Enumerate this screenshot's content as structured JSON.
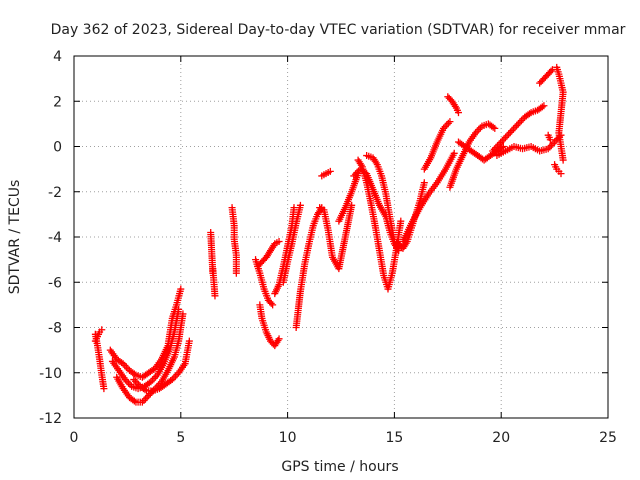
{
  "chart_data": {
    "type": "scatter",
    "title": "Day 362 of 2023, Sidereal Day-to-day VTEC variation (SDTVAR) for receiver mmar",
    "xlabel": "GPS time / hours",
    "ylabel": "SDTVAR / TECUs",
    "xlim": [
      0,
      25
    ],
    "ylim": [
      -12,
      4
    ],
    "x_ticks": [
      0,
      5,
      10,
      15,
      20,
      25
    ],
    "y_ticks": [
      -12,
      -10,
      -8,
      -6,
      -4,
      -2,
      0,
      2,
      4
    ],
    "x_tick_labels": [
      "0",
      "5",
      "10",
      "15",
      "20",
      "25"
    ],
    "y_tick_labels": [
      "-12",
      "-10",
      "-8",
      "-6",
      "-4",
      "-2",
      "0",
      "2",
      "4"
    ],
    "grid": true,
    "marker": "+",
    "color": "#ff0000",
    "series": [
      {
        "name": "t1",
        "x": [
          1.0,
          1.1,
          1.2,
          1.3,
          1.4
        ],
        "y": [
          -8.3,
          -8.8,
          -9.4,
          -10.1,
          -10.7
        ]
      },
      {
        "name": "t2",
        "x": [
          1.0,
          1.1,
          1.2,
          1.3
        ],
        "y": [
          -8.6,
          -8.4,
          -8.2,
          -8.1
        ]
      },
      {
        "name": "t3",
        "x": [
          1.7,
          2.0,
          2.3,
          2.6,
          2.9,
          3.2,
          3.5,
          3.8,
          4.1,
          4.4,
          4.6,
          4.8,
          5.0
        ],
        "y": [
          -9.0,
          -9.4,
          -9.6,
          -9.9,
          -10.1,
          -10.2,
          -10.0,
          -9.8,
          -9.4,
          -8.8,
          -7.6,
          -7.0,
          -6.3
        ]
      },
      {
        "name": "t4",
        "x": [
          1.8,
          2.1,
          2.4,
          2.7,
          3.0,
          3.3,
          3.6,
          3.9,
          4.2,
          4.5,
          4.7,
          4.9
        ],
        "y": [
          -9.5,
          -9.9,
          -10.3,
          -10.6,
          -10.7,
          -10.6,
          -10.4,
          -10.1,
          -9.6,
          -8.9,
          -8.2,
          -7.2
        ]
      },
      {
        "name": "t5",
        "x": [
          2.0,
          2.3,
          2.6,
          2.9,
          3.2,
          3.5,
          3.8,
          4.1,
          4.4,
          4.7,
          4.9,
          5.1
        ],
        "y": [
          -10.2,
          -10.7,
          -11.1,
          -11.3,
          -11.3,
          -11.0,
          -10.7,
          -10.4,
          -9.9,
          -9.3,
          -8.6,
          -7.4
        ]
      },
      {
        "name": "t6",
        "x": [
          2.8,
          3.1,
          3.4,
          3.7,
          4.0,
          4.3,
          4.6,
          4.9,
          5.2,
          5.4
        ],
        "y": [
          -10.3,
          -10.6,
          -10.8,
          -10.8,
          -10.7,
          -10.5,
          -10.3,
          -10.0,
          -9.6,
          -8.6
        ]
      },
      {
        "name": "t7",
        "x": [
          6.4,
          6.5,
          6.5,
          6.6
        ],
        "y": [
          -3.8,
          -5.6,
          -5.4,
          -6.6
        ]
      },
      {
        "name": "t8",
        "x": [
          7.4,
          7.5,
          7.5,
          7.6,
          7.6
        ],
        "y": [
          -2.7,
          -3.5,
          -4.1,
          -4.8,
          -5.6
        ]
      },
      {
        "name": "t9",
        "x": [
          8.5,
          8.7,
          8.9,
          9.1,
          9.3
        ],
        "y": [
          -5.0,
          -5.6,
          -6.3,
          -6.8,
          -7.0
        ]
      },
      {
        "name": "t10",
        "x": [
          8.6,
          8.8,
          9.0,
          9.2,
          9.4,
          9.6
        ],
        "y": [
          -5.3,
          -5.1,
          -4.9,
          -4.6,
          -4.3,
          -4.2
        ]
      },
      {
        "name": "t11",
        "x": [
          8.7,
          8.8,
          9.0,
          9.2,
          9.4,
          9.6
        ],
        "y": [
          -7.0,
          -7.6,
          -8.2,
          -8.6,
          -8.8,
          -8.5
        ]
      },
      {
        "name": "t12",
        "x": [
          9.4,
          9.6,
          9.8,
          10.0,
          10.2,
          10.3
        ],
        "y": [
          -6.5,
          -6.1,
          -5.3,
          -4.4,
          -3.5,
          -2.7
        ]
      },
      {
        "name": "t13",
        "x": [
          9.8,
          10.0,
          10.2,
          10.4,
          10.6
        ],
        "y": [
          -6.0,
          -5.1,
          -4.3,
          -3.4,
          -2.6
        ]
      },
      {
        "name": "t14",
        "x": [
          10.4,
          10.6,
          10.8,
          11.0,
          11.2,
          11.4,
          11.6
        ],
        "y": [
          -8.0,
          -6.4,
          -5.2,
          -4.3,
          -3.5,
          -3.0,
          -2.7
        ]
      },
      {
        "name": "t15",
        "x": [
          11.5,
          11.7,
          11.9,
          12.1,
          12.4,
          12.7,
          13.0
        ],
        "y": [
          -2.7,
          -2.8,
          -3.7,
          -4.9,
          -5.4,
          -4.0,
          -2.6
        ]
      },
      {
        "name": "t16",
        "x": [
          11.6,
          11.8,
          12.0
        ],
        "y": [
          -1.3,
          -1.2,
          -1.1
        ]
      },
      {
        "name": "t17",
        "x": [
          12.4,
          12.7,
          13.0,
          13.3
        ],
        "y": [
          -3.3,
          -2.7,
          -2.0,
          -1.2
        ]
      },
      {
        "name": "t18",
        "x": [
          13.3,
          13.5,
          13.7,
          13.9,
          14.1,
          14.3,
          14.5,
          14.7,
          14.9,
          15.1,
          15.3
        ],
        "y": [
          -0.6,
          -0.9,
          -1.6,
          -2.5,
          -3.5,
          -4.6,
          -5.7,
          -6.3,
          -5.6,
          -4.5,
          -3.3
        ]
      },
      {
        "name": "t19",
        "x": [
          13.1,
          13.4,
          13.7,
          14.0,
          14.3,
          14.6,
          14.8,
          15.0,
          15.2
        ],
        "y": [
          -1.3,
          -1.0,
          -1.2,
          -1.9,
          -2.6,
          -3.1,
          -3.8,
          -4.3,
          -4.6
        ]
      },
      {
        "name": "t20",
        "x": [
          13.7,
          14.0,
          14.2,
          14.4,
          14.6,
          14.8,
          15.0,
          15.2,
          15.4,
          15.6,
          15.8,
          16.0,
          16.2,
          16.4
        ],
        "y": [
          -0.4,
          -0.5,
          -0.8,
          -1.3,
          -2.1,
          -3.2,
          -4.2,
          -4.3,
          -4.5,
          -4.2,
          -3.6,
          -3.0,
          -2.4,
          -1.6
        ]
      },
      {
        "name": "t21",
        "x": [
          15.4,
          15.8,
          16.2,
          16.6,
          17.0,
          17.4,
          17.8
        ],
        "y": [
          -4.2,
          -3.4,
          -2.7,
          -2.1,
          -1.6,
          -1.0,
          -0.3
        ]
      },
      {
        "name": "t22",
        "x": [
          16.4,
          16.7,
          17.0,
          17.3,
          17.6
        ],
        "y": [
          -1.0,
          -0.5,
          0.2,
          0.8,
          1.1
        ]
      },
      {
        "name": "t23",
        "x": [
          17.5,
          17.7,
          17.9,
          18.0
        ],
        "y": [
          2.2,
          2.0,
          1.7,
          1.5
        ]
      },
      {
        "name": "t24",
        "x": [
          17.6,
          17.9,
          18.2,
          18.5,
          18.8,
          19.1,
          19.4,
          19.7
        ],
        "y": [
          -1.8,
          -1.0,
          -0.4,
          0.2,
          0.6,
          0.9,
          1.0,
          0.8
        ]
      },
      {
        "name": "t25",
        "x": [
          18.0,
          18.3,
          18.6,
          18.9,
          19.2,
          19.5,
          19.8,
          20.1
        ],
        "y": [
          0.2,
          0.0,
          -0.2,
          -0.4,
          -0.6,
          -0.4,
          -0.2,
          0.0
        ]
      },
      {
        "name": "t26",
        "x": [
          19.6,
          19.9,
          20.2,
          20.5,
          20.8,
          21.1,
          21.4,
          21.7,
          22.0
        ],
        "y": [
          -0.2,
          0.1,
          0.4,
          0.7,
          1.0,
          1.3,
          1.5,
          1.6,
          1.8
        ]
      },
      {
        "name": "t27",
        "x": [
          19.8,
          20.2,
          20.6,
          21.0,
          21.4,
          21.8,
          22.2,
          22.5,
          22.8
        ],
        "y": [
          -0.4,
          -0.2,
          0.0,
          -0.1,
          0.0,
          -0.2,
          -0.1,
          0.2,
          0.5
        ]
      },
      {
        "name": "t28",
        "x": [
          21.8,
          22.0,
          22.2,
          22.4
        ],
        "y": [
          2.8,
          3.0,
          3.2,
          3.4
        ]
      },
      {
        "name": "t29",
        "x": [
          22.2,
          22.3
        ],
        "y": [
          0.5,
          0.3
        ]
      },
      {
        "name": "t30",
        "x": [
          22.6,
          22.7,
          22.8,
          22.9,
          22.7,
          22.8,
          22.9
        ],
        "y": [
          3.5,
          3.2,
          2.8,
          2.4,
          0.6,
          0.0,
          -0.6
        ]
      },
      {
        "name": "t31",
        "x": [
          22.5,
          22.6,
          22.7,
          22.8
        ],
        "y": [
          -0.8,
          -1.0,
          -1.1,
          -1.2
        ]
      }
    ]
  }
}
